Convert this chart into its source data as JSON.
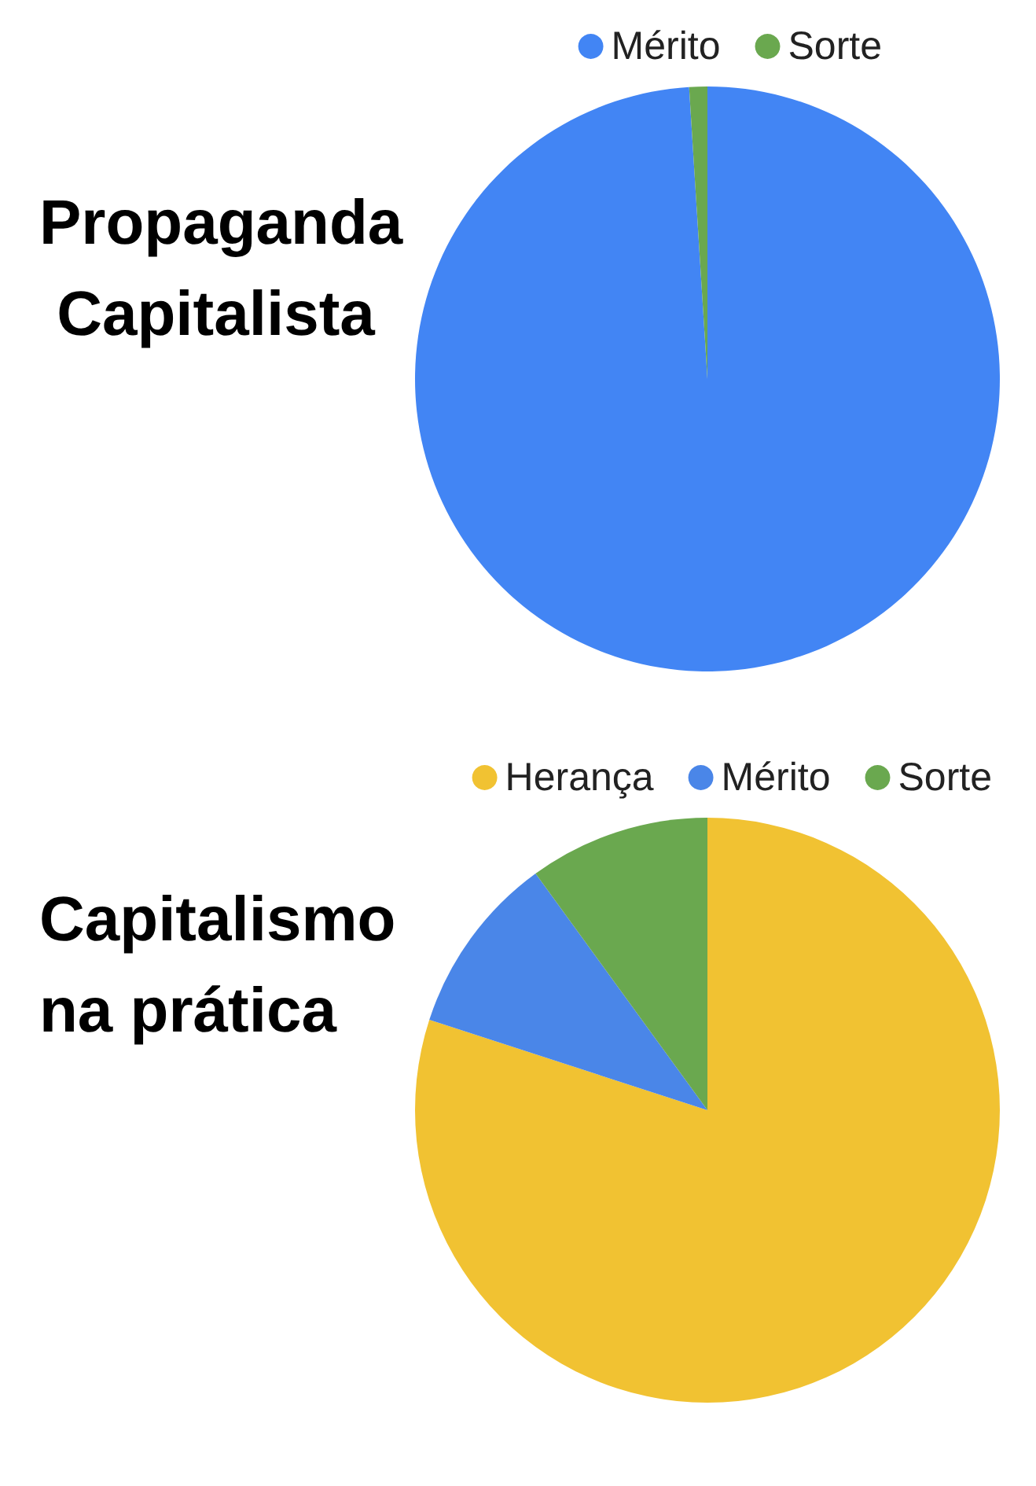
{
  "chart_data": [
    {
      "type": "pie",
      "title": "Propaganda Capitalista",
      "categories": [
        "Mérito",
        "Sorte"
      ],
      "values": [
        99,
        1
      ],
      "colors": [
        "#4285f4",
        "#6aa84f"
      ],
      "legend": "top"
    },
    {
      "type": "pie",
      "title": "Capitalismo na prática",
      "categories": [
        "Herança",
        "Mérito",
        "Sorte"
      ],
      "values": [
        80,
        10,
        10
      ],
      "colors": [
        "#f1c232",
        "#4a86e8",
        "#6aa84f"
      ],
      "legend": "top"
    }
  ]
}
